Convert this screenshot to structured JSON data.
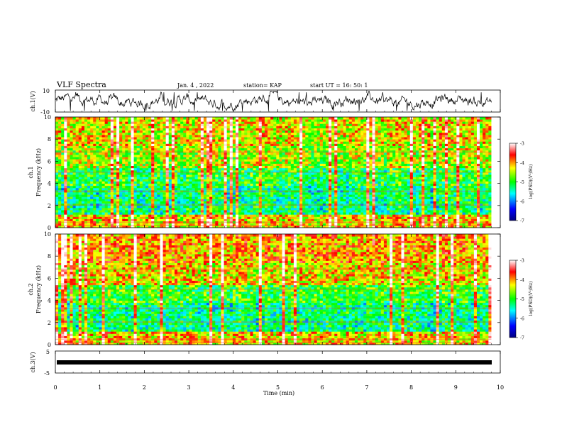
{
  "header": {
    "title": "VLF Spectra",
    "date": "Jan. 4 , 2022",
    "station": "station= KAP",
    "start_ut": "start UT =  16: 50: 1"
  },
  "chart_data": [
    {
      "type": "line",
      "id": "ch1_waveform",
      "ylabel": "ch.1(V)",
      "ylim": [
        -10,
        10
      ],
      "yticks": [
        "10",
        "-10"
      ],
      "xlim": [
        0,
        10
      ],
      "series_color": "#000000"
    },
    {
      "type": "heatmap",
      "id": "ch1_spectrogram",
      "ylabel": "ch.1\nFrequency (kHz)",
      "ylabel_line1": "ch.1",
      "ylabel_line2": "Frequency (kHz)",
      "ylim": [
        0,
        10
      ],
      "yticks": [
        "0",
        "2",
        "4",
        "6",
        "8",
        "10"
      ],
      "xlim": [
        0,
        9.8
      ],
      "colorbar": {
        "label": "log(PSD)(V²/Hz)",
        "range": [
          -7,
          -3
        ],
        "ticks": [
          "-3",
          "-4",
          "-5",
          "-6",
          "-7"
        ]
      }
    },
    {
      "type": "heatmap",
      "id": "ch2_spectrogram",
      "ylabel_line1": "ch.2",
      "ylabel_line2": "Frequency (kHz)",
      "ylim": [
        0,
        10
      ],
      "yticks": [
        "0",
        "2",
        "4",
        "6",
        "8",
        "10"
      ],
      "xlim": [
        0,
        9.8
      ],
      "colorbar": {
        "label": "log(PSD)(V²/Hz)",
        "range": [
          -7,
          -3
        ],
        "ticks": [
          "-3",
          "-4",
          "-5",
          "-6",
          "-7"
        ]
      }
    },
    {
      "type": "line",
      "id": "ch3_waveform",
      "ylabel": "ch.3(V)",
      "ylim": [
        -5,
        5
      ],
      "yticks": [
        "5",
        "-5"
      ],
      "values_constant": -1
    }
  ],
  "xaxis": {
    "label": "Time (min)",
    "ticks": [
      "0",
      "1",
      "2",
      "3",
      "4",
      "5",
      "6",
      "7",
      "8",
      "9",
      "10"
    ],
    "range": [
      0,
      10
    ]
  },
  "colors": {
    "colormap": [
      "#000080",
      "#0000ff",
      "#00ffff",
      "#00ff00",
      "#ffff00",
      "#ff0000",
      "#ffffff"
    ]
  }
}
